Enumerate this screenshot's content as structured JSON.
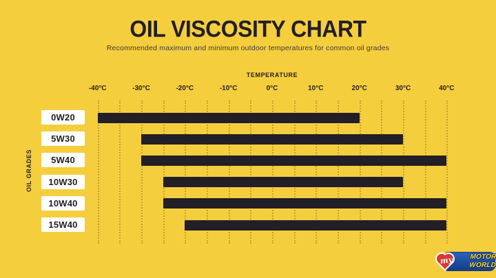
{
  "chart_data": {
    "type": "bar",
    "orientation": "horizontal",
    "title": "OIL VISCOSITY CHART",
    "subtitle": "Recommended maximum and minimum outdoor temperatures for common oil grades",
    "xlabel": "TEMPERATURE",
    "ylabel": "OIL GRADES",
    "categories": [
      "0W20",
      "5W30",
      "5W40",
      "10W30",
      "10W40",
      "15W40"
    ],
    "series": [
      {
        "name": "0W20",
        "min_c": -40,
        "max_c": 20
      },
      {
        "name": "5W30",
        "min_c": -30,
        "max_c": 30
      },
      {
        "name": "5W40",
        "min_c": -30,
        "max_c": 40
      },
      {
        "name": "10W30",
        "min_c": -25,
        "max_c": 30
      },
      {
        "name": "10W40",
        "min_c": -25,
        "max_c": 40
      },
      {
        "name": "15W40",
        "min_c": -20,
        "max_c": 40
      }
    ],
    "xlim": [
      -40,
      40
    ],
    "x_ticks": [
      -40,
      -30,
      -20,
      -10,
      0,
      10,
      20,
      30,
      40
    ],
    "x_tick_labels": [
      "-40°C",
      "-30°C",
      "-20°C",
      "-10°C",
      "0°C",
      "10°C",
      "20°C",
      "30°C",
      "40°C"
    ],
    "minor_grid_step_c": 5,
    "grid": true,
    "legend": "none",
    "colors": {
      "background": "#f5ce3e",
      "bar": "#221f26",
      "label_box": "#fefefa",
      "text": "#221f26"
    }
  },
  "logo": {
    "heart_word": "my",
    "line1": "MOTOR",
    "line2": "WORLD",
    "colors": {
      "plate_blue": "#1c4e9e",
      "heart_red": "#d93a31",
      "text_yellow": "#f8d53f"
    }
  }
}
